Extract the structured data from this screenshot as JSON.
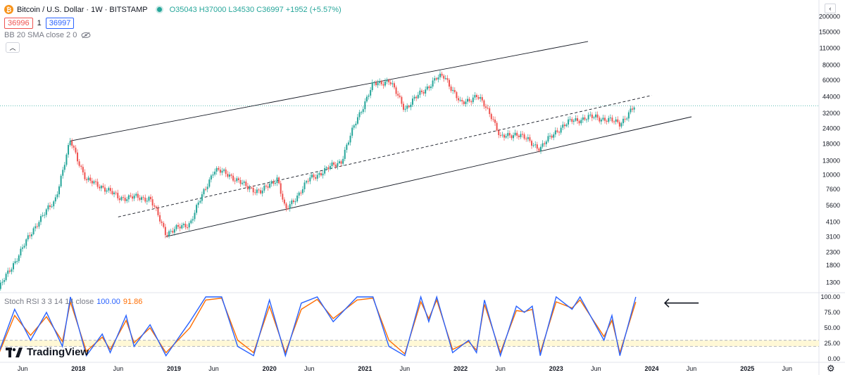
{
  "header": {
    "symbol_icon": "bitcoin-icon",
    "title": "Bitcoin / U.S. Dollar · 1W · BITSTAMP",
    "ohlc": "O35043 H37000 L34530 C36997 +1952 (+5.57%)",
    "sell_price": "36996",
    "spread": "1",
    "buy_price": "36997",
    "indicator": "BB 20 SMA close 2 0",
    "stoch_label": "Stoch RSI 3 3 14 14 close",
    "stoch_k_value": "100.00",
    "stoch_d_value": "91.86",
    "brand": "TradingView"
  },
  "colors": {
    "up": "#26a69a",
    "down": "#ef5350",
    "stoch_k": "#2962ff",
    "stoch_d": "#ff6d00",
    "band_fill": "#fff8d6"
  },
  "chart_data": {
    "type": "candlestick",
    "title": "Bitcoin / U.S. Dollar · 1W · BITSTAMP",
    "y_scale": "log",
    "ylim": [
      1100,
      260000
    ],
    "y_ticks": [
      1300,
      1800,
      2300,
      3100,
      4100,
      5600,
      7600,
      10000,
      13000,
      18000,
      24000,
      32000,
      44000,
      60000,
      80000,
      110000,
      150000,
      200000
    ],
    "x_ticks": [
      "Jun",
      "2018",
      "Jun",
      "2019",
      "Jun",
      "2020",
      "Jun",
      "2021",
      "Jun",
      "2022",
      "Jun",
      "2023",
      "Jun",
      "2024",
      "Jun",
      "2025",
      "Jun"
    ],
    "x_tick_dates": [
      "2017-06",
      "2018-01",
      "2018-06",
      "2019-01",
      "2019-06",
      "2020-01",
      "2020-06",
      "2021-01",
      "2021-06",
      "2022-01",
      "2022-06",
      "2023-01",
      "2023-06",
      "2024-01",
      "2024-06",
      "2025-01",
      "2025-06"
    ],
    "price_path": [
      {
        "date": "2017-03",
        "close": 1150
      },
      {
        "date": "2017-06",
        "close": 2500
      },
      {
        "date": "2017-08",
        "close": 4200
      },
      {
        "date": "2017-10",
        "close": 6000
      },
      {
        "date": "2017-12",
        "close": 19000
      },
      {
        "date": "2018-02",
        "close": 9000
      },
      {
        "date": "2018-04",
        "close": 8000
      },
      {
        "date": "2018-06",
        "close": 6500
      },
      {
        "date": "2018-08",
        "close": 6500
      },
      {
        "date": "2018-10",
        "close": 6400
      },
      {
        "date": "2018-12",
        "close": 3300
      },
      {
        "date": "2019-03",
        "close": 4000
      },
      {
        "date": "2019-06",
        "close": 11000
      },
      {
        "date": "2019-08",
        "close": 10000
      },
      {
        "date": "2019-10",
        "close": 8000
      },
      {
        "date": "2019-12",
        "close": 7200
      },
      {
        "date": "2020-02",
        "close": 9500
      },
      {
        "date": "2020-03",
        "close": 5000
      },
      {
        "date": "2020-06",
        "close": 9200
      },
      {
        "date": "2020-10",
        "close": 13000
      },
      {
        "date": "2020-12",
        "close": 29000
      },
      {
        "date": "2021-02",
        "close": 55000
      },
      {
        "date": "2021-04",
        "close": 60000
      },
      {
        "date": "2021-06",
        "close": 35000
      },
      {
        "date": "2021-08",
        "close": 47000
      },
      {
        "date": "2021-10",
        "close": 62000
      },
      {
        "date": "2021-11",
        "close": 65000
      },
      {
        "date": "2022-01",
        "close": 38000
      },
      {
        "date": "2022-03",
        "close": 45000
      },
      {
        "date": "2022-05",
        "close": 30000
      },
      {
        "date": "2022-06",
        "close": 20000
      },
      {
        "date": "2022-08",
        "close": 22000
      },
      {
        "date": "2022-11",
        "close": 16500
      },
      {
        "date": "2023-01",
        "close": 23000
      },
      {
        "date": "2023-03",
        "close": 28000
      },
      {
        "date": "2023-06",
        "close": 30000
      },
      {
        "date": "2023-09",
        "close": 26500
      },
      {
        "date": "2023-11",
        "close": 36997
      }
    ],
    "channel_lines": [
      {
        "name": "upper",
        "style": "solid",
        "from": {
          "date": "2017-12",
          "value": 19000
        },
        "to": {
          "date": "2023-05",
          "value": 125000
        }
      },
      {
        "name": "middle",
        "style": "dashed",
        "from": {
          "date": "2018-06",
          "value": 4500
        },
        "to": {
          "date": "2024-01",
          "value": 45000
        }
      },
      {
        "name": "lower",
        "style": "solid",
        "from": {
          "date": "2018-12",
          "value": 3100
        },
        "to": {
          "date": "2024-06",
          "value": 30000
        }
      }
    ],
    "last_price": 36997,
    "stoch_rsi": {
      "ylim": [
        0,
        100
      ],
      "y_ticks": [
        0,
        25,
        50,
        75,
        100
      ],
      "band": [
        20,
        30
      ],
      "k": [
        {
          "date": "2017-03",
          "value": 10
        },
        {
          "date": "2017-05",
          "value": 80
        },
        {
          "date": "2017-07",
          "value": 30
        },
        {
          "date": "2017-09",
          "value": 75
        },
        {
          "date": "2017-11",
          "value": 20
        },
        {
          "date": "2017-12",
          "value": 100
        },
        {
          "date": "2018-02",
          "value": 5
        },
        {
          "date": "2018-04",
          "value": 40
        },
        {
          "date": "2018-05",
          "value": 10
        },
        {
          "date": "2018-07",
          "value": 70
        },
        {
          "date": "2018-08",
          "value": 20
        },
        {
          "date": "2018-10",
          "value": 55
        },
        {
          "date": "2018-12",
          "value": 5
        },
        {
          "date": "2019-03",
          "value": 60
        },
        {
          "date": "2019-05",
          "value": 100
        },
        {
          "date": "2019-07",
          "value": 100
        },
        {
          "date": "2019-09",
          "value": 20
        },
        {
          "date": "2019-11",
          "value": 5
        },
        {
          "date": "2020-01",
          "value": 95
        },
        {
          "date": "2020-03",
          "value": 5
        },
        {
          "date": "2020-05",
          "value": 90
        },
        {
          "date": "2020-07",
          "value": 100
        },
        {
          "date": "2020-09",
          "value": 60
        },
        {
          "date": "2020-12",
          "value": 100
        },
        {
          "date": "2021-02",
          "value": 100
        },
        {
          "date": "2021-04",
          "value": 20
        },
        {
          "date": "2021-06",
          "value": 5
        },
        {
          "date": "2021-08",
          "value": 100
        },
        {
          "date": "2021-09",
          "value": 60
        },
        {
          "date": "2021-10",
          "value": 100
        },
        {
          "date": "2021-12",
          "value": 10
        },
        {
          "date": "2022-02",
          "value": 30
        },
        {
          "date": "2022-03",
          "value": 10
        },
        {
          "date": "2022-04",
          "value": 95
        },
        {
          "date": "2022-06",
          "value": 5
        },
        {
          "date": "2022-08",
          "value": 85
        },
        {
          "date": "2022-09",
          "value": 75
        },
        {
          "date": "2022-10",
          "value": 85
        },
        {
          "date": "2022-11",
          "value": 5
        },
        {
          "date": "2023-01",
          "value": 100
        },
        {
          "date": "2023-03",
          "value": 80
        },
        {
          "date": "2023-04",
          "value": 100
        },
        {
          "date": "2023-07",
          "value": 30
        },
        {
          "date": "2023-08",
          "value": 70
        },
        {
          "date": "2023-09",
          "value": 5
        },
        {
          "date": "2023-11",
          "value": 100
        }
      ],
      "d": [
        {
          "date": "2017-03",
          "value": 8
        },
        {
          "date": "2017-05",
          "value": 70
        },
        {
          "date": "2017-07",
          "value": 38
        },
        {
          "date": "2017-09",
          "value": 68
        },
        {
          "date": "2017-11",
          "value": 28
        },
        {
          "date": "2017-12",
          "value": 92
        },
        {
          "date": "2018-02",
          "value": 12
        },
        {
          "date": "2018-04",
          "value": 35
        },
        {
          "date": "2018-05",
          "value": 15
        },
        {
          "date": "2018-07",
          "value": 62
        },
        {
          "date": "2018-08",
          "value": 26
        },
        {
          "date": "2018-10",
          "value": 50
        },
        {
          "date": "2018-12",
          "value": 10
        },
        {
          "date": "2019-03",
          "value": 50
        },
        {
          "date": "2019-05",
          "value": 95
        },
        {
          "date": "2019-07",
          "value": 98
        },
        {
          "date": "2019-09",
          "value": 30
        },
        {
          "date": "2019-11",
          "value": 10
        },
        {
          "date": "2020-01",
          "value": 85
        },
        {
          "date": "2020-03",
          "value": 10
        },
        {
          "date": "2020-05",
          "value": 80
        },
        {
          "date": "2020-07",
          "value": 96
        },
        {
          "date": "2020-09",
          "value": 65
        },
        {
          "date": "2020-12",
          "value": 95
        },
        {
          "date": "2021-02",
          "value": 98
        },
        {
          "date": "2021-04",
          "value": 30
        },
        {
          "date": "2021-06",
          "value": 8
        },
        {
          "date": "2021-08",
          "value": 92
        },
        {
          "date": "2021-09",
          "value": 65
        },
        {
          "date": "2021-10",
          "value": 95
        },
        {
          "date": "2021-12",
          "value": 15
        },
        {
          "date": "2022-02",
          "value": 28
        },
        {
          "date": "2022-03",
          "value": 14
        },
        {
          "date": "2022-04",
          "value": 88
        },
        {
          "date": "2022-06",
          "value": 10
        },
        {
          "date": "2022-08",
          "value": 78
        },
        {
          "date": "2022-09",
          "value": 76
        },
        {
          "date": "2022-10",
          "value": 80
        },
        {
          "date": "2022-11",
          "value": 10
        },
        {
          "date": "2023-01",
          "value": 92
        },
        {
          "date": "2023-03",
          "value": 82
        },
        {
          "date": "2023-04",
          "value": 95
        },
        {
          "date": "2023-07",
          "value": 36
        },
        {
          "date": "2023-08",
          "value": 62
        },
        {
          "date": "2023-09",
          "value": 10
        },
        {
          "date": "2023-11",
          "value": 91.86
        }
      ]
    }
  }
}
